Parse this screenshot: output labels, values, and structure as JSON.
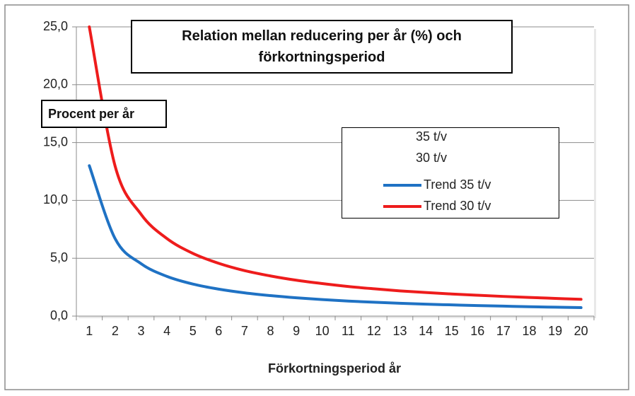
{
  "chart_data": {
    "type": "line",
    "title": "Relation mellan reducering per år (%)  och förkortningsperiod",
    "y_label": "Procent per år",
    "x_label": "Förkortningsperiod  år",
    "categories": [
      "1",
      "2",
      "3",
      "4",
      "5",
      "6",
      "7",
      "8",
      "9",
      "10",
      "11",
      "12",
      "13",
      "14",
      "15",
      "16",
      "17",
      "18",
      "19",
      "20"
    ],
    "series": [
      {
        "name": "35 t/v",
        "color": null,
        "values": [
          null,
          null,
          null,
          null,
          null,
          null,
          null,
          null,
          null,
          null,
          null,
          null,
          null,
          null,
          null,
          null,
          null,
          null,
          null,
          null
        ]
      },
      {
        "name": "30 t/v",
        "color": null,
        "values": [
          null,
          null,
          null,
          null,
          null,
          null,
          null,
          null,
          null,
          null,
          null,
          null,
          null,
          null,
          null,
          null,
          null,
          null,
          null,
          null
        ]
      },
      {
        "name": "Trend 35 t/v",
        "color": "#1f72c4",
        "values": [
          13,
          6.68,
          4.53,
          3.43,
          2.77,
          2.33,
          2.01,
          1.77,
          1.58,
          1.43,
          1.3,
          1.2,
          1.11,
          1.03,
          0.97,
          0.91,
          0.86,
          0.81,
          0.77,
          0.73
        ]
      },
      {
        "name": "Trend 30 t/v",
        "color": "#ee1c1c",
        "values": [
          25,
          12.94,
          8.8,
          6.7,
          5.42,
          4.56,
          3.93,
          3.47,
          3.1,
          2.81,
          2.56,
          2.36,
          2.18,
          2.04,
          1.91,
          1.8,
          1.7,
          1.61,
          1.53,
          1.45
        ]
      }
    ],
    "ylim": [
      0,
      25
    ],
    "yticks": [
      {
        "value": 0,
        "label": "0,0"
      },
      {
        "value": 5,
        "label": "5,0"
      },
      {
        "value": 10,
        "label": "10,0"
      },
      {
        "value": 15,
        "label": "15,0"
      },
      {
        "value": 20,
        "label": "20,0"
      },
      {
        "value": 25,
        "label": "25,0"
      }
    ],
    "grid": true
  }
}
